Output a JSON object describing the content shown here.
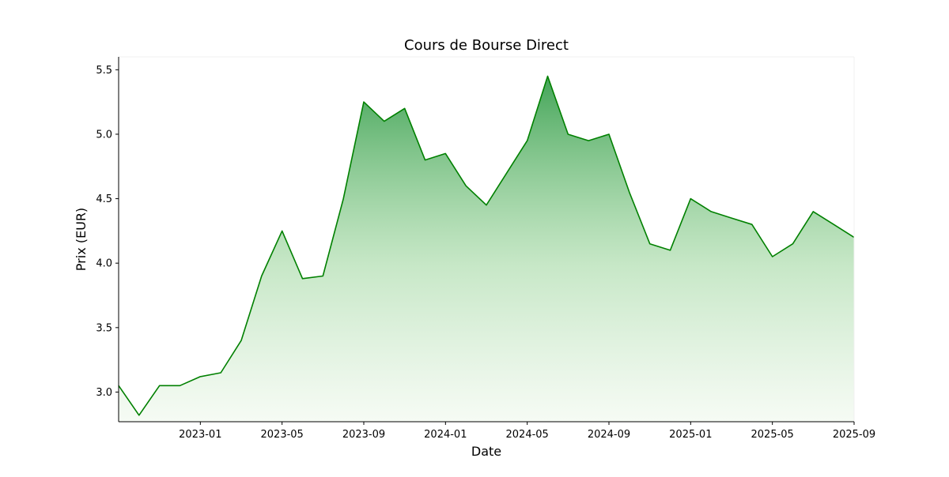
{
  "chart_data": {
    "type": "line",
    "title": "Cours de Bourse Direct",
    "x_label": "Date",
    "y_label": "Prix (EUR)",
    "x": [
      "2022-09",
      "2022-10",
      "2022-11",
      "2022-12",
      "2023-01",
      "2023-02",
      "2023-03",
      "2023-04",
      "2023-05",
      "2023-06",
      "2023-07",
      "2023-08",
      "2023-09",
      "2023-10",
      "2023-11",
      "2023-12",
      "2024-01",
      "2024-02",
      "2024-03",
      "2024-04",
      "2024-05",
      "2024-06",
      "2024-07",
      "2024-08",
      "2024-09",
      "2024-10",
      "2024-11",
      "2024-12",
      "2025-01",
      "2025-02",
      "2025-03",
      "2025-04",
      "2025-05",
      "2025-06",
      "2025-07",
      "2025-08",
      "2025-09"
    ],
    "values": [
      3.05,
      2.82,
      3.05,
      3.05,
      3.12,
      3.15,
      3.4,
      3.9,
      4.25,
      3.88,
      3.9,
      4.5,
      5.25,
      5.1,
      5.2,
      4.8,
      4.85,
      4.6,
      4.45,
      4.7,
      4.95,
      5.45,
      5.0,
      4.95,
      5.0,
      4.55,
      4.15,
      4.1,
      4.5,
      4.4,
      4.35,
      4.3,
      4.05,
      4.15,
      4.4,
      4.3,
      4.2
    ],
    "color": "#008000",
    "xlim": [
      "2022-09",
      "2025-09"
    ],
    "xticks": [
      "2023-01",
      "2023-05",
      "2023-09",
      "2024-01",
      "2024-05",
      "2024-09",
      "2025-01",
      "2025-05",
      "2025-09"
    ],
    "ylim": [
      2.77,
      5.6
    ],
    "yticks": [
      {
        "value": 3,
        "label": "3.0"
      },
      3.5,
      {
        "value": 4,
        "label": "4.0"
      },
      4.5,
      {
        "value": 5,
        "label": "5.0"
      },
      5.5
    ]
  }
}
